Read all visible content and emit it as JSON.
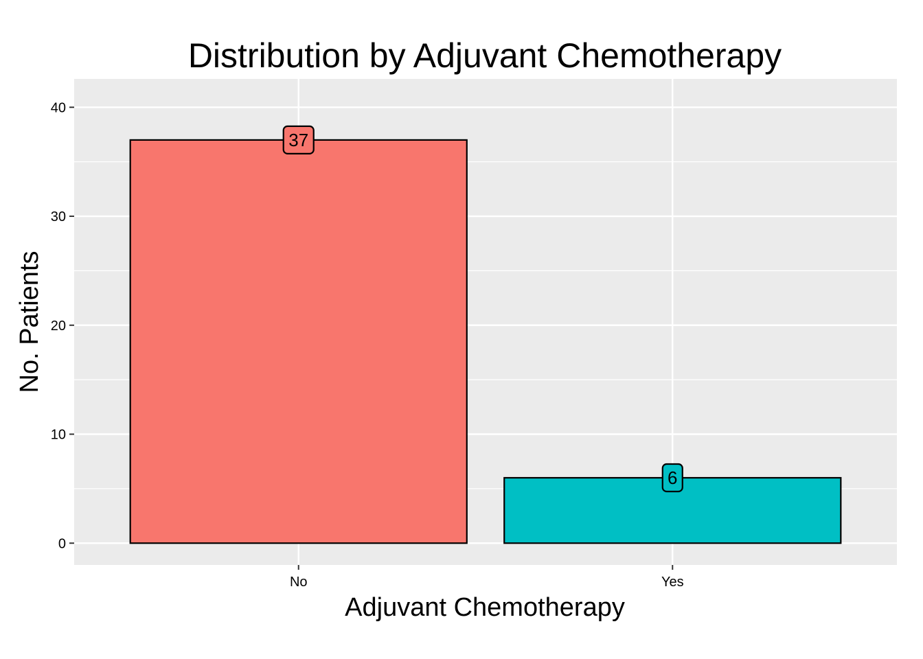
{
  "chart_data": {
    "type": "bar",
    "title": "Distribution by Adjuvant Chemotherapy",
    "xlabel": "Adjuvant Chemotherapy",
    "ylabel": "No. Patients",
    "categories": [
      "No",
      "Yes"
    ],
    "values": [
      37,
      6
    ],
    "data_labels": [
      "37",
      "6"
    ],
    "colors": [
      "#F8766D",
      "#00BFC4"
    ],
    "ylim": [
      -2,
      42.6
    ],
    "yticks": [
      0,
      10,
      20,
      30,
      40
    ],
    "ytick_labels": [
      "0",
      "10",
      "20",
      "30",
      "40"
    ],
    "grid": true,
    "legend": "none",
    "panel_background": "#EBEBEB",
    "grid_color": "#FFFFFF"
  }
}
